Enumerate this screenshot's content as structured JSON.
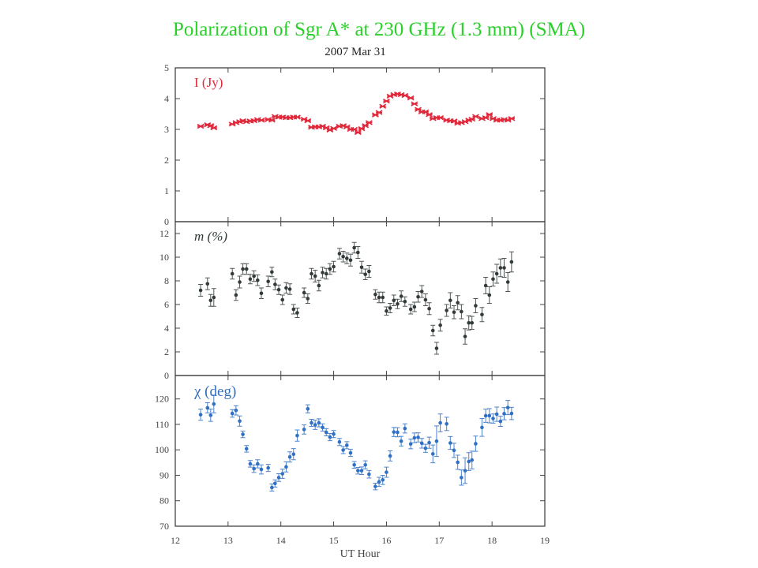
{
  "chart_data": {
    "type": "scatter",
    "title": "Polarization of Sgr A* at 230 GHz (1.3 mm) (SMA)",
    "subtitle": "2007 Mar 31",
    "xlabel": "UT Hour",
    "xlim": [
      12,
      19
    ],
    "xticks": [
      "12",
      "13",
      "14",
      "15",
      "16",
      "17",
      "18",
      "19"
    ],
    "x": [
      12.48,
      12.61,
      12.67,
      12.73,
      13.08,
      13.15,
      13.22,
      13.28,
      13.35,
      13.42,
      13.49,
      13.56,
      13.63,
      13.76,
      13.83,
      13.89,
      13.96,
      14.03,
      14.1,
      14.17,
      14.24,
      14.31,
      14.44,
      14.51,
      14.58,
      14.65,
      14.72,
      14.79,
      14.86,
      14.93,
      15.0,
      15.11,
      15.18,
      15.25,
      15.32,
      15.39,
      15.46,
      15.53,
      15.6,
      15.67,
      15.79,
      15.86,
      15.93,
      16.0,
      16.07,
      16.14,
      16.21,
      16.28,
      16.35,
      16.46,
      16.53,
      16.6,
      16.67,
      16.74,
      16.81,
      16.88,
      16.95,
      17.02,
      17.14,
      17.21,
      17.28,
      17.35,
      17.42,
      17.49,
      17.56,
      17.62,
      17.69,
      17.81,
      17.88,
      17.95,
      18.02,
      18.09,
      18.16,
      18.23,
      18.3,
      18.37
    ],
    "panels": [
      {
        "name": "I (Jy)",
        "color": "#e0283a",
        "marker": "cross",
        "ylim": [
          0,
          5
        ],
        "yticks": [
          "0",
          "1",
          "2",
          "3",
          "4",
          "5"
        ],
        "ytick_values": [
          0,
          1,
          2,
          3,
          4,
          5
        ],
        "values": [
          3.1,
          3.15,
          3.12,
          3.05,
          3.17,
          3.22,
          3.25,
          3.28,
          3.25,
          3.27,
          3.28,
          3.32,
          3.3,
          3.32,
          3.3,
          3.42,
          3.4,
          3.4,
          3.38,
          3.38,
          3.4,
          3.4,
          3.33,
          3.28,
          3.07,
          3.08,
          3.08,
          3.1,
          3.05,
          2.98,
          3.03,
          3.1,
          3.12,
          3.08,
          3.0,
          3.0,
          2.9,
          3.02,
          3.12,
          3.22,
          3.47,
          3.55,
          3.75,
          3.92,
          4.08,
          4.13,
          4.15,
          4.13,
          4.1,
          4.02,
          3.83,
          3.65,
          3.57,
          3.57,
          3.48,
          3.35,
          3.38,
          3.38,
          3.3,
          3.28,
          3.27,
          3.2,
          3.22,
          3.25,
          3.3,
          3.33,
          3.42,
          3.35,
          3.38,
          3.48,
          3.35,
          3.3,
          3.3,
          3.32,
          3.3,
          3.35
        ],
        "errors": []
      },
      {
        "name": "m (%)",
        "color": "#333a3a",
        "marker": "dot",
        "ylim": [
          0,
          13
        ],
        "yticks": [
          "0",
          "2",
          "4",
          "6",
          "8",
          "10",
          "12"
        ],
        "ytick_values": [
          0,
          2,
          4,
          6,
          8,
          10,
          12
        ],
        "values": [
          7.2,
          7.75,
          6.35,
          6.6,
          8.6,
          6.8,
          7.9,
          9.0,
          9.0,
          8.15,
          8.4,
          8.05,
          6.95,
          7.95,
          8.75,
          7.7,
          7.25,
          6.4,
          7.4,
          7.3,
          5.6,
          5.3,
          7.0,
          6.5,
          8.6,
          8.4,
          7.6,
          8.7,
          8.6,
          9.0,
          9.2,
          10.3,
          10.05,
          9.9,
          9.75,
          10.8,
          10.4,
          9.15,
          8.55,
          8.8,
          6.85,
          6.6,
          6.6,
          5.45,
          5.7,
          6.35,
          6.05,
          6.7,
          6.25,
          5.6,
          5.8,
          6.65,
          7.1,
          6.4,
          5.65,
          3.8,
          2.3,
          4.25,
          5.5,
          6.35,
          5.35,
          6.15,
          5.4,
          3.3,
          4.45,
          4.45,
          5.9,
          5.15,
          7.6,
          6.8,
          8.15,
          8.6,
          9.1,
          9.1,
          7.9,
          9.6
        ],
        "errors": [
          0.5,
          0.5,
          0.5,
          0.75,
          0.45,
          0.45,
          0.5,
          0.45,
          0.45,
          0.4,
          0.45,
          0.45,
          0.45,
          0.45,
          0.4,
          0.45,
          0.4,
          0.4,
          0.45,
          0.45,
          0.4,
          0.4,
          0.4,
          0.4,
          0.45,
          0.5,
          0.45,
          0.45,
          0.45,
          0.45,
          0.45,
          0.45,
          0.45,
          0.45,
          0.5,
          0.45,
          0.5,
          0.5,
          0.45,
          0.5,
          0.4,
          0.45,
          0.45,
          0.35,
          0.4,
          0.45,
          0.4,
          0.45,
          0.4,
          0.4,
          0.4,
          0.45,
          0.5,
          0.5,
          0.5,
          0.45,
          0.5,
          0.5,
          0.5,
          0.65,
          0.55,
          0.6,
          0.6,
          0.65,
          0.6,
          0.55,
          0.6,
          0.6,
          0.7,
          0.7,
          0.6,
          0.8,
          0.75,
          0.8,
          0.8,
          0.85
        ]
      },
      {
        "name": "χ (deg)",
        "color": "#2f6fc4",
        "marker": "dot",
        "ylim": [
          70,
          129.2
        ],
        "yticks": [
          "70",
          "80",
          "90",
          "100",
          "110",
          "120"
        ],
        "ytick_values": [
          70,
          80,
          90,
          100,
          110,
          120
        ],
        "values": [
          113.8,
          116.5,
          113.6,
          118,
          114.3,
          115.5,
          111.3,
          106.1,
          100.4,
          94.5,
          92.6,
          94.5,
          92.3,
          92.9,
          85.2,
          86.8,
          89.1,
          90.6,
          93.3,
          97.2,
          98.3,
          105.6,
          108,
          116.1,
          110.6,
          109.8,
          110.6,
          108.8,
          106.9,
          105,
          106.2,
          103.1,
          99.9,
          101.8,
          98.8,
          94.1,
          91.8,
          91.8,
          94.1,
          90.4,
          85.6,
          87.4,
          88.2,
          91.2,
          97.6,
          107,
          106.9,
          103.4,
          108.4,
          102.3,
          104.7,
          104.9,
          102.6,
          100.6,
          102.8,
          98.4,
          103.4,
          110.6,
          110.2,
          102.7,
          99.8,
          95.1,
          89.1,
          91.8,
          95.4,
          96,
          102.4,
          108.8,
          113.4,
          113.4,
          112.3,
          114,
          111.2,
          114.2,
          116.6,
          114.3
        ],
        "errors": [
          2.2,
          2,
          2.4,
          3.5,
          1.5,
          1.8,
          2,
          1.3,
          1.3,
          1.3,
          1.5,
          1.6,
          1.8,
          1.4,
          1.4,
          1.4,
          1.5,
          1.8,
          2,
          2,
          2.2,
          2.2,
          1.8,
          1.6,
          1.4,
          1.8,
          1.6,
          1.4,
          1.4,
          1.4,
          1.4,
          1.4,
          1.4,
          1.4,
          1.4,
          1.3,
          1.3,
          1.5,
          1.6,
          1.5,
          1.3,
          1.8,
          1.8,
          2,
          2,
          1.8,
          1.8,
          1.9,
          1.8,
          1.9,
          1.9,
          1.8,
          1.9,
          1.6,
          2.2,
          3.5,
          6,
          3.5,
          2.6,
          2.5,
          2.8,
          2.8,
          3,
          5,
          3.5,
          3.5,
          3,
          3.5,
          2.6,
          2.8,
          1.8,
          2.8,
          2,
          2.4,
          2.8,
          2.4
        ]
      }
    ]
  }
}
